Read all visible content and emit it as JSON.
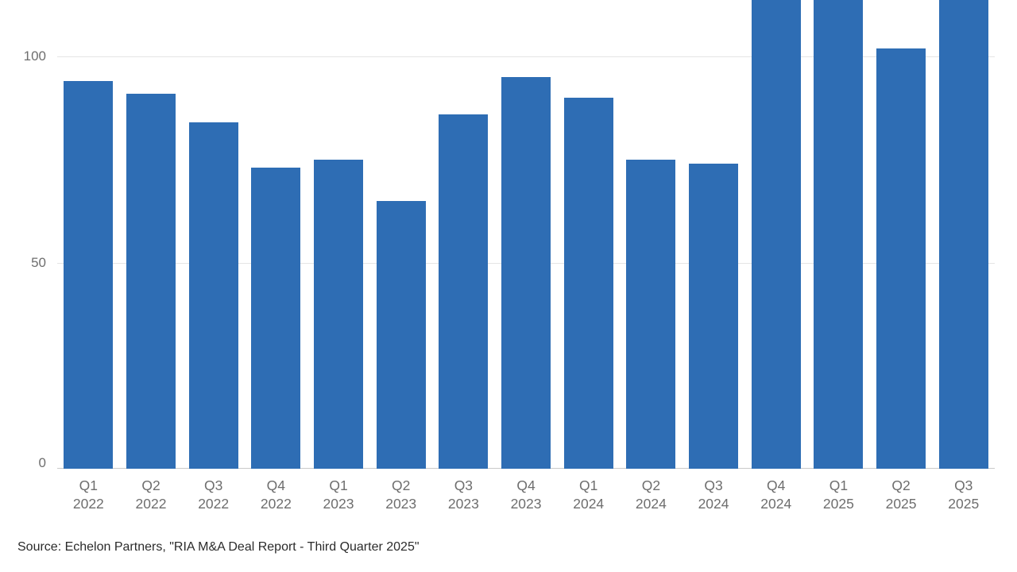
{
  "chart_data": {
    "type": "bar",
    "title": "",
    "xlabel": "",
    "ylabel": "",
    "categories": [
      [
        "Q1",
        "2022"
      ],
      [
        "Q2",
        "2022"
      ],
      [
        "Q3",
        "2022"
      ],
      [
        "Q4",
        "2022"
      ],
      [
        "Q1",
        "2023"
      ],
      [
        "Q2",
        "2023"
      ],
      [
        "Q3",
        "2023"
      ],
      [
        "Q4",
        "2023"
      ],
      [
        "Q1",
        "2024"
      ],
      [
        "Q2",
        "2024"
      ],
      [
        "Q3",
        "2024"
      ],
      [
        "Q4",
        "2024"
      ],
      [
        "Q1",
        "2025"
      ],
      [
        "Q2",
        "2025"
      ],
      [
        "Q3",
        "2025"
      ]
    ],
    "values": [
      94,
      91,
      84,
      73,
      75,
      65,
      86,
      95,
      90,
      75,
      74,
      118,
      118,
      102,
      115
    ],
    "yticks": [
      0,
      50,
      100
    ],
    "ylim_visible": [
      0,
      113.7
    ],
    "note": "Bars for Q4 2024, Q1 2025 and Q3 2025 extend beyond the visible top edge of the chart (clipped).",
    "grid": "horizontal",
    "legend": "none",
    "bar_color": "#2e6db4"
  },
  "source": {
    "text": "Source: Echelon Partners, \"RIA M&A Deal Report - Third Quarter 2025\""
  }
}
